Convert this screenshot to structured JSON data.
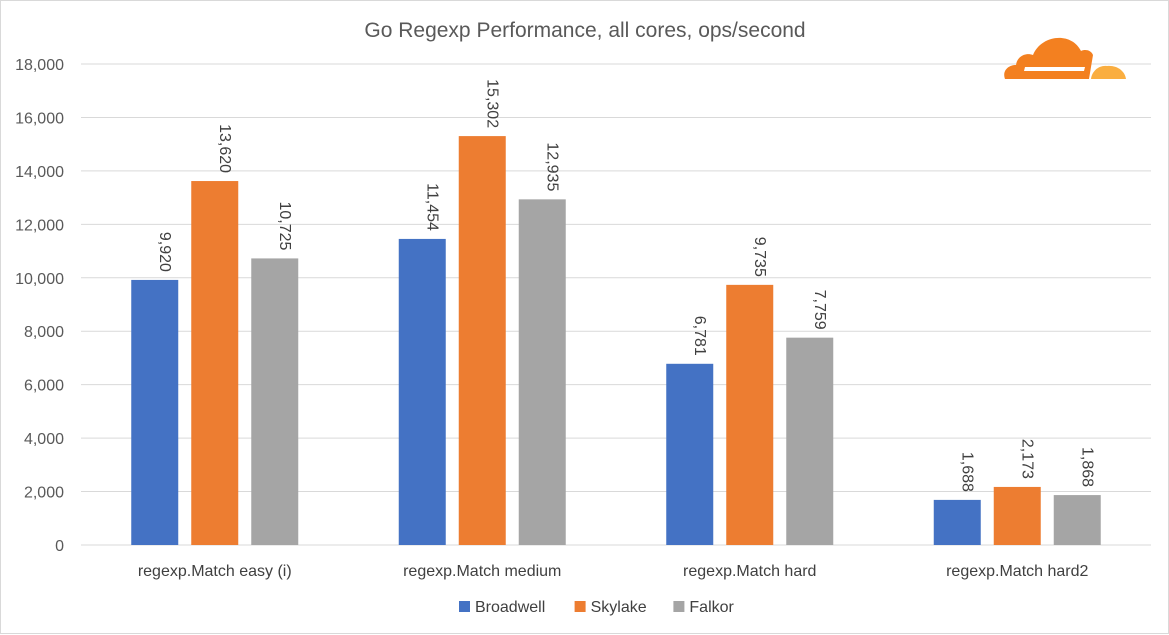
{
  "chart_data": {
    "type": "bar",
    "title": "Go Regexp Performance, all cores, ops/second",
    "xlabel": "",
    "ylabel": "",
    "categories": [
      "regexp.Match easy (i)",
      "regexp.Match medium",
      "regexp.Match hard",
      "regexp.Match hard2"
    ],
    "series": [
      {
        "name": "Broadwell",
        "color": "#4472c4",
        "values": [
          9920,
          11454,
          6781,
          1688
        ],
        "labels": [
          "9,920",
          "11,454",
          "6,781",
          "1,688"
        ]
      },
      {
        "name": "Skylake",
        "color": "#ed7d31",
        "values": [
          13620,
          15302,
          9735,
          2173
        ],
        "labels": [
          "13,620",
          "15,302",
          "9,735",
          "2,173"
        ]
      },
      {
        "name": "Falkor",
        "color": "#a5a5a5",
        "values": [
          10725,
          12935,
          7759,
          1868
        ],
        "labels": [
          "10,725",
          "12,935",
          "7,759",
          "1,868"
        ]
      }
    ],
    "ylim": [
      0,
      18000
    ],
    "yticks": [
      0,
      2000,
      4000,
      6000,
      8000,
      10000,
      12000,
      14000,
      16000,
      18000
    ],
    "ytick_labels": [
      "0",
      "2,000",
      "4,000",
      "6,000",
      "8,000",
      "10,000",
      "12,000",
      "14,000",
      "16,000",
      "18,000"
    ],
    "grid": true,
    "legend_position": "bottom",
    "data_labels": "rotated-above-bars"
  },
  "logo": {
    "name": "cloudflare-logo",
    "colors": [
      "#f38020",
      "#faae40"
    ]
  }
}
